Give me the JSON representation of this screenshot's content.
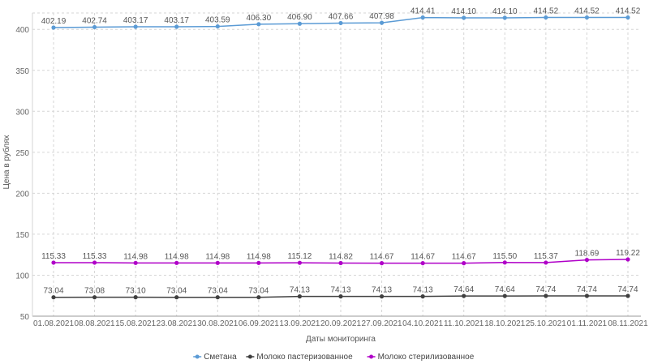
{
  "chart_data": {
    "type": "line",
    "categories": [
      "01.08.2021",
      "08.08.2021",
      "15.08.2021",
      "23.08.2021",
      "30.08.2021",
      "06.09.2021",
      "13.09.2021",
      "20.09.2021",
      "27.09.2021",
      "04.10.2021",
      "11.10.2021",
      "18.10.2021",
      "25.10.2021",
      "01.11.2021",
      "08.11.2021"
    ],
    "series": [
      {
        "name": "Сметана",
        "color": "#5b9bd5",
        "values": [
          402.19,
          402.74,
          403.17,
          403.17,
          403.59,
          406.3,
          406.9,
          407.66,
          407.98,
          414.41,
          414.1,
          414.1,
          414.52,
          414.52,
          414.52
        ],
        "labels": [
          "402.19",
          "402.74",
          "403.17",
          "403.17",
          "403.59",
          "406.30",
          "406.90",
          "407.66",
          "407.98",
          "414.41",
          "414.10",
          "414.10",
          "414.52",
          "414.52",
          "414.52"
        ]
      },
      {
        "name": "Молоко пастеризованное",
        "color": "#404040",
        "values": [
          73.04,
          73.08,
          73.1,
          73.04,
          73.04,
          73.04,
          74.13,
          74.13,
          74.13,
          74.13,
          74.64,
          74.64,
          74.74,
          74.74,
          74.74
        ],
        "labels": [
          "73.04",
          "73.08",
          "73.10",
          "73.04",
          "73.04",
          "73.04",
          "74.13",
          "74.13",
          "74.13",
          "74.13",
          "74.64",
          "74.64",
          "74.74",
          "74.74",
          "74.74"
        ]
      },
      {
        "name": "Молоко стерилизованное",
        "color": "#b000c8",
        "values": [
          115.33,
          115.33,
          114.98,
          114.98,
          114.98,
          114.98,
          115.12,
          114.82,
          114.67,
          114.67,
          114.67,
          115.5,
          115.37,
          118.69,
          119.22
        ],
        "labels": [
          "115.33",
          "115.33",
          "114.98",
          "114.98",
          "114.98",
          "114.98",
          "115.12",
          "114.82",
          "114.67",
          "114.67",
          "114.67",
          "115.50",
          "115.37",
          "118.69",
          "119.22"
        ]
      }
    ],
    "yticks": [
      50,
      100,
      150,
      200,
      250,
      300,
      350,
      400
    ],
    "ylim": [
      50,
      420
    ],
    "xlabel": "Даты мониторинга",
    "ylabel": "Цена в рублях",
    "grid": true,
    "legend_position": "bottom-center"
  }
}
